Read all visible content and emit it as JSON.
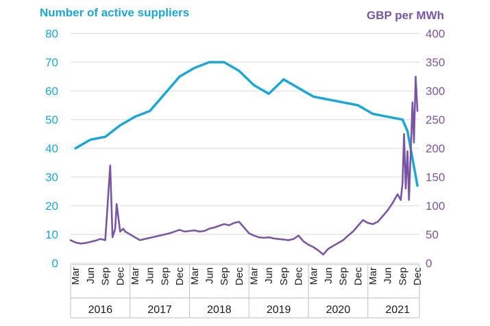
{
  "colors": {
    "suppliers": "#1aa7d6",
    "price": "#7a55a6",
    "grid": "#d9d9d9",
    "axis_text": "#1a1a1a"
  },
  "chart_data": {
    "type": "line",
    "left_axis": {
      "title": "Number of active suppliers",
      "ylim": [
        0,
        80
      ],
      "ticks": [
        "0",
        "10",
        "20",
        "30",
        "40",
        "50",
        "60",
        "70",
        "80"
      ]
    },
    "right_axis": {
      "title": "GBP per MWh",
      "ylim": [
        0,
        400
      ],
      "ticks": [
        "0",
        "50",
        "100",
        "150",
        "200",
        "250",
        "300",
        "350",
        "400"
      ]
    },
    "x_axis": {
      "month_labels": [
        "Mar",
        "Jun",
        "Sep",
        "Dec"
      ],
      "years": [
        "2016",
        "2017",
        "2018",
        "2019",
        "2020",
        "2021"
      ],
      "range": [
        "2016-02",
        "2021-12"
      ]
    },
    "grid": "horizontal",
    "series": [
      {
        "id": "suppliers",
        "axis": "left",
        "color": "#1aa7d6",
        "x": [
          "2016-03",
          "2016-06",
          "2016-09",
          "2016-12",
          "2017-03",
          "2017-06",
          "2017-09",
          "2017-12",
          "2018-03",
          "2018-06",
          "2018-09",
          "2018-12",
          "2019-03",
          "2019-06",
          "2019-09",
          "2019-12",
          "2020-03",
          "2020-06",
          "2020-09",
          "2020-12",
          "2021-03",
          "2021-06",
          "2021-09",
          "2021-10",
          "2021-12"
        ],
        "values": [
          40,
          43,
          44,
          48,
          51,
          53,
          59,
          65,
          68,
          70,
          70,
          67,
          62,
          59,
          64,
          61,
          58,
          57,
          56,
          55,
          52,
          51,
          50,
          46,
          27
        ]
      },
      {
        "id": "price",
        "axis": "right",
        "color": "#7a55a6",
        "x": [
          "2016-02",
          "2016-03",
          "2016-04",
          "2016-05",
          "2016-06",
          "2016-07",
          "2016-08",
          "2016-09",
          "2016-10",
          "2016-10-15",
          "2016-11",
          "2016-11-10",
          "2016-12",
          "2016-12-20",
          "2017-01",
          "2017-02",
          "2017-03",
          "2017-04",
          "2017-05",
          "2017-06",
          "2017-07",
          "2017-08",
          "2017-09",
          "2017-10",
          "2017-11",
          "2017-12",
          "2018-01",
          "2018-02",
          "2018-03",
          "2018-04",
          "2018-05",
          "2018-06",
          "2018-07",
          "2018-08",
          "2018-09",
          "2018-10",
          "2018-11",
          "2018-12",
          "2019-01",
          "2019-02",
          "2019-03",
          "2019-04",
          "2019-05",
          "2019-06",
          "2019-07",
          "2019-08",
          "2019-09",
          "2019-10",
          "2019-11",
          "2019-12",
          "2020-01",
          "2020-02",
          "2020-03",
          "2020-04",
          "2020-05",
          "2020-06",
          "2020-07",
          "2020-08",
          "2020-09",
          "2020-10",
          "2020-11",
          "2020-12",
          "2021-01",
          "2021-02",
          "2021-03",
          "2021-04",
          "2021-05",
          "2021-06",
          "2021-07",
          "2021-08",
          "2021-08-20",
          "2021-09",
          "2021-09-10",
          "2021-09-20",
          "2021-10",
          "2021-10-10",
          "2021-10-20",
          "2021-11",
          "2021-11-10",
          "2021-11-20",
          "2021-12"
        ],
        "values": [
          40,
          36,
          34,
          35,
          37,
          39,
          42,
          40,
          170,
          45,
          60,
          103,
          55,
          60,
          55,
          50,
          45,
          40,
          42,
          44,
          46,
          48,
          50,
          52,
          55,
          58,
          55,
          56,
          57,
          55,
          56,
          60,
          62,
          65,
          68,
          66,
          70,
          72,
          62,
          52,
          48,
          45,
          44,
          45,
          43,
          42,
          41,
          40,
          42,
          48,
          38,
          32,
          28,
          22,
          15,
          25,
          30,
          35,
          40,
          48,
          55,
          65,
          75,
          70,
          68,
          72,
          82,
          92,
          105,
          120,
          110,
          140,
          225,
          130,
          195,
          110,
          190,
          280,
          210,
          325,
          265
        ]
      }
    ]
  }
}
